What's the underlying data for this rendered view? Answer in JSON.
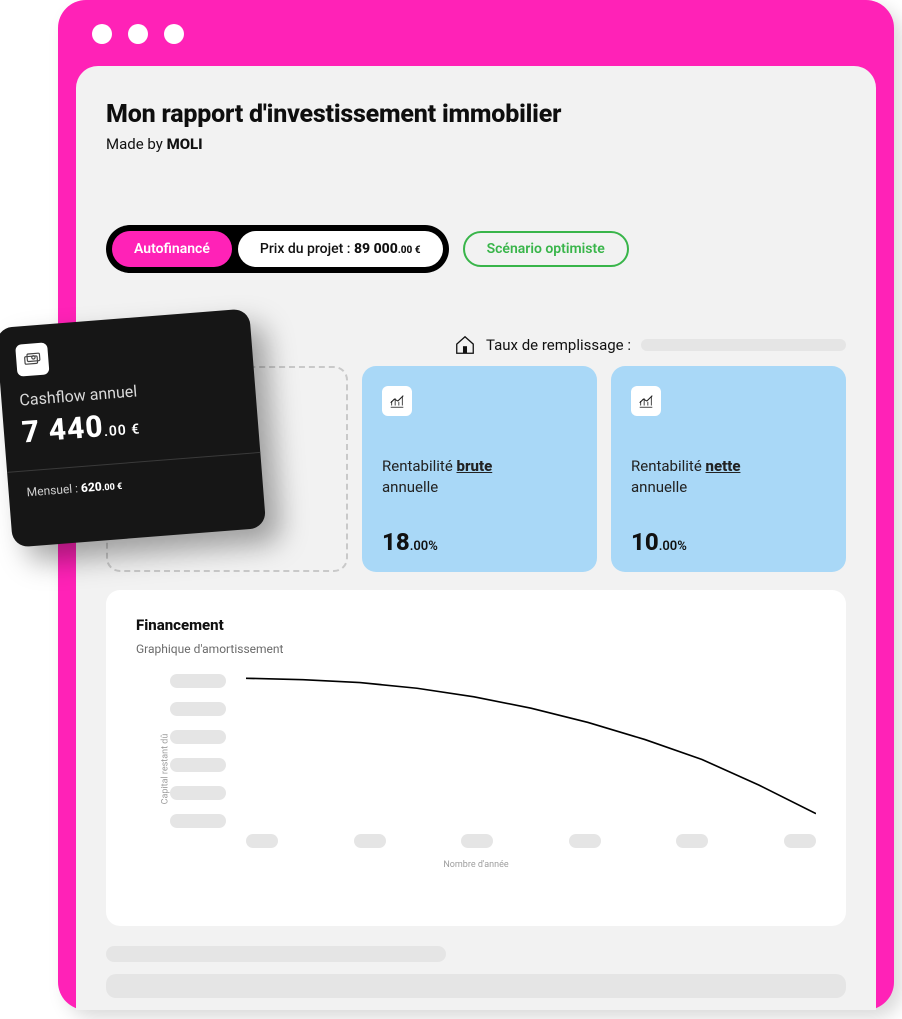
{
  "colors": {
    "magenta": "#ff22b7",
    "panel": "#f2f2f2",
    "card_blue": "#a9d8f7",
    "green": "#39b54a",
    "dark": "#161616",
    "skeleton": "#e5e5e5",
    "white": "#ffffff"
  },
  "header": {
    "title": "Mon rapport d'investissement immobilier",
    "made_by_prefix": "Made by ",
    "brand": "MOLI"
  },
  "pills": {
    "auto": "Autofinancé",
    "price_prefix": "Prix du projet : ",
    "price_value": "89 000",
    "price_small": ".00 €",
    "scenario": "Scénario optimiste"
  },
  "fillrate": {
    "label": "Taux de remplissage :"
  },
  "metrics": [
    {
      "label_pre": "Rentabilité ",
      "label_em": "brute",
      "label_post": "annuelle",
      "value": "18",
      "value_small": ".00%"
    },
    {
      "label_pre": "Rentabilité ",
      "label_em": "nette",
      "label_post": "annuelle",
      "value": "10",
      "value_small": ".00%"
    }
  ],
  "float": {
    "title": "Cashflow annuel",
    "value": "7  440",
    "value_small": ".00 €",
    "footer_prefix": "Mensuel : ",
    "footer_value": "620",
    "footer_small": ".00 €"
  },
  "fin": {
    "title": "Financement",
    "subtitle": "Graphique d'amortissement",
    "ylabel": "Capital restant dû",
    "xlabel": "Nombre d'année",
    "curve": {
      "type": "line",
      "points_norm": [
        [
          0.0,
          0.03
        ],
        [
          0.1,
          0.04
        ],
        [
          0.2,
          0.06
        ],
        [
          0.3,
          0.1
        ],
        [
          0.4,
          0.16
        ],
        [
          0.5,
          0.24
        ],
        [
          0.6,
          0.34
        ],
        [
          0.7,
          0.46
        ],
        [
          0.8,
          0.6
        ],
        [
          0.9,
          0.78
        ],
        [
          1.0,
          0.98
        ]
      ],
      "stroke": "#000000",
      "stroke_width": 1.6
    },
    "x_ticks_count": 6,
    "y_ticks_count": 6
  }
}
